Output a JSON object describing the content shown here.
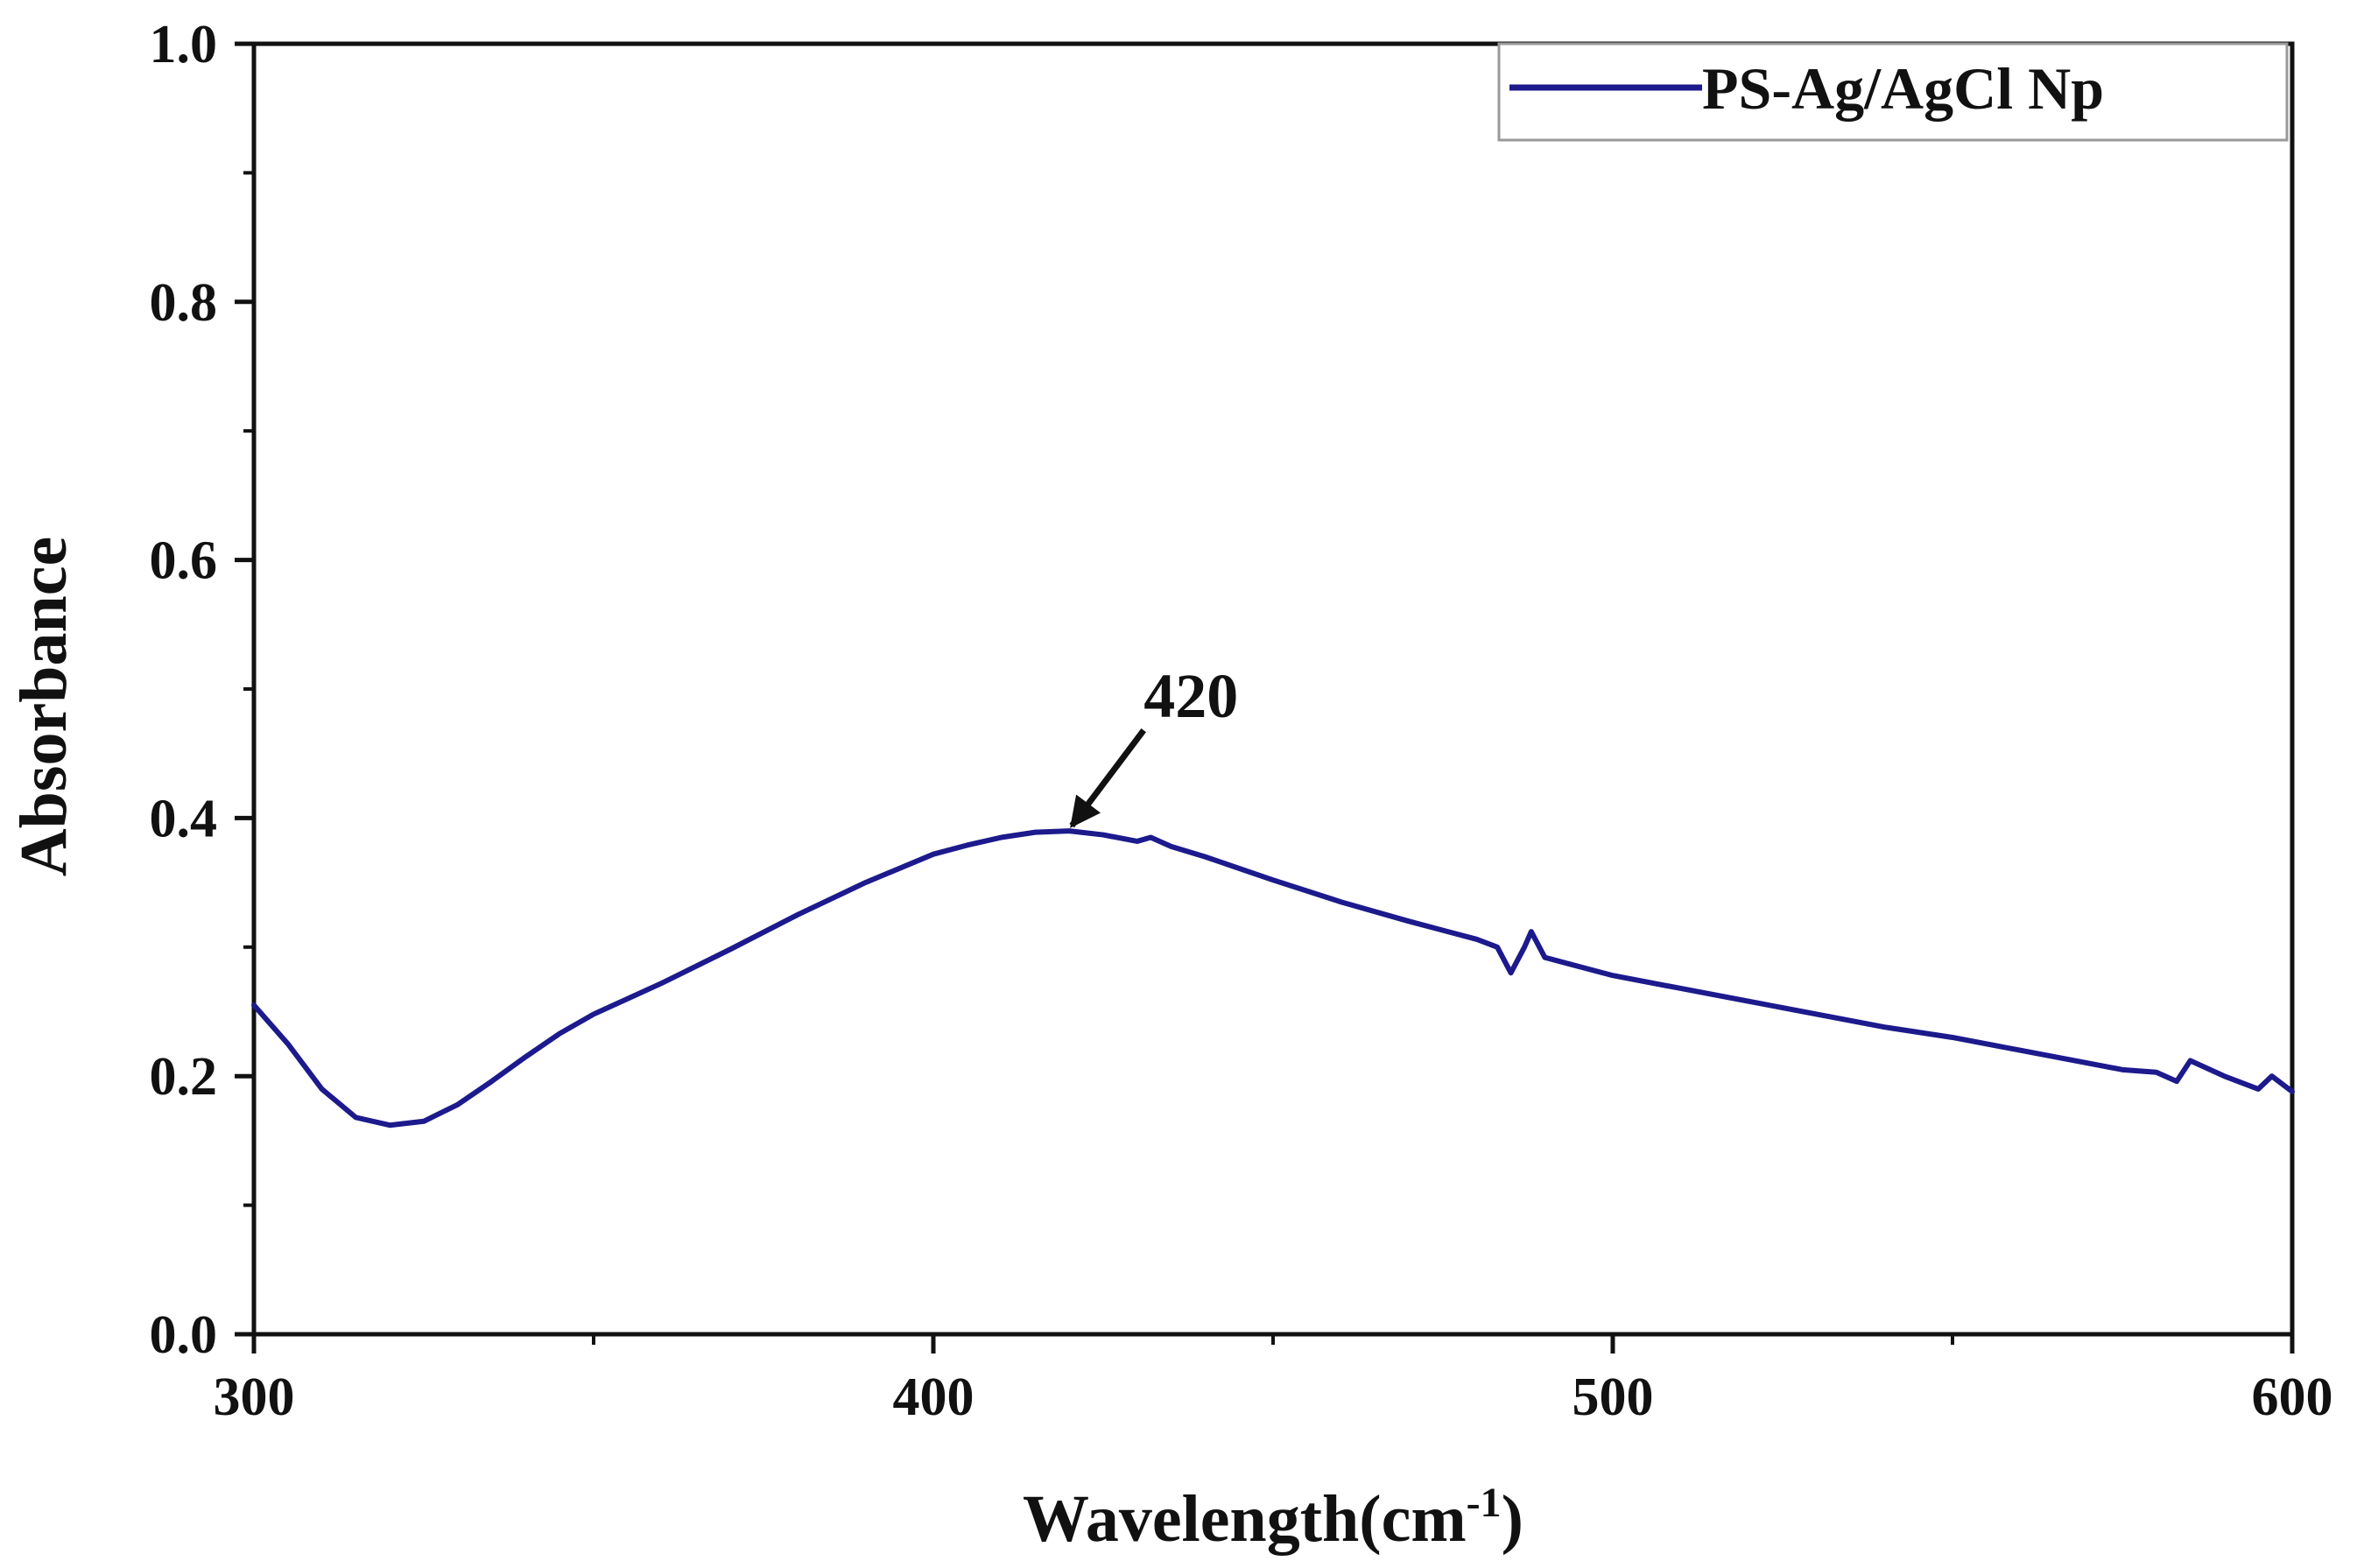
{
  "chart_data": {
    "type": "line",
    "title": "",
    "xlabel": "Wavelength(cm",
    "xlabel_superscript": "-1",
    "xlabel_suffix": ")",
    "ylabel": "Absorbance",
    "xlim": [
      300,
      600
    ],
    "ylim": [
      0.0,
      1.0
    ],
    "x_ticks": [
      "300",
      "400",
      "500",
      "600"
    ],
    "y_ticks": [
      "0.0",
      "0.2",
      "0.4",
      "0.6",
      "0.8",
      "1.0"
    ],
    "grid": false,
    "legend_position": "top-right",
    "series": [
      {
        "name": "PS-Ag/AgCl Np",
        "color": "#1c1a8c",
        "x": [
          300,
          305,
          310,
          315,
          320,
          325,
          330,
          335,
          340,
          345,
          350,
          360,
          370,
          380,
          390,
          400,
          405,
          410,
          415,
          420,
          425,
          430,
          432,
          435,
          440,
          450,
          460,
          470,
          480,
          483,
          485,
          487,
          488,
          490,
          500,
          510,
          520,
          530,
          540,
          550,
          560,
          570,
          575,
          580,
          583,
          585,
          590,
          595,
          597,
          600
        ],
        "values": [
          0.255,
          0.225,
          0.19,
          0.168,
          0.162,
          0.165,
          0.178,
          0.196,
          0.215,
          0.233,
          0.248,
          0.272,
          0.298,
          0.325,
          0.35,
          0.372,
          0.379,
          0.385,
          0.389,
          0.39,
          0.387,
          0.382,
          0.385,
          0.378,
          0.37,
          0.352,
          0.335,
          0.32,
          0.306,
          0.3,
          0.28,
          0.3,
          0.312,
          0.292,
          0.278,
          0.268,
          0.258,
          0.248,
          0.238,
          0.23,
          0.22,
          0.21,
          0.205,
          0.203,
          0.196,
          0.212,
          0.2,
          0.19,
          0.2,
          0.188
        ]
      }
    ],
    "annotations": [
      {
        "text": "420",
        "target_x": 420,
        "target_y": 0.39
      }
    ]
  }
}
